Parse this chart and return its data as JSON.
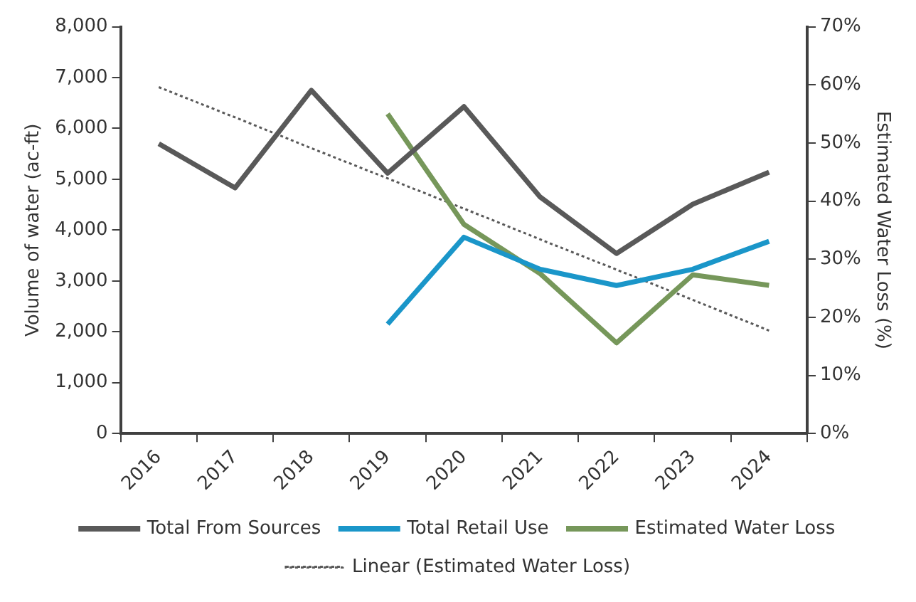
{
  "chart_data": {
    "type": "line",
    "ylabel": "Volume of water (ac-ft)",
    "y2label": "Estimated Water Loss (%)",
    "categories": [
      "2016",
      "2017",
      "2018",
      "2019",
      "2020",
      "2021",
      "2022",
      "2023",
      "2024"
    ],
    "series": [
      {
        "name": "Total From Sources",
        "color": "#595959",
        "values": [
          5700,
          4830,
          6750,
          5120,
          6430,
          4650,
          3540,
          4510,
          5140
        ]
      },
      {
        "name": "Total Retail Use",
        "color": "#1a96c9",
        "values": [
          null,
          null,
          null,
          2150,
          3860,
          3230,
          2910,
          3230,
          3780
        ]
      },
      {
        "name": "Estimated Water Loss",
        "color": "#76975a",
        "axis": "y2",
        "values": [
          null,
          null,
          null,
          55,
          36,
          27.5,
          15.6,
          27.3,
          25.5
        ]
      },
      {
        "name": "Linear (Estimated Water Loss)",
        "color": "#595959",
        "axis": "y2",
        "line_style": "dotted",
        "values": [
          59.6,
          54.4,
          49.1,
          43.9,
          38.7,
          33.4,
          28.2,
          23.0,
          17.7
        ]
      }
    ],
    "ylim": [
      0,
      8000
    ],
    "yticks": [
      0,
      {
        "value": 1000,
        "label": "1,000"
      },
      {
        "value": 2000,
        "label": "2,000"
      },
      {
        "value": 3000,
        "label": "3,000"
      },
      {
        "value": 4000,
        "label": "4,000"
      },
      {
        "value": 5000,
        "label": "5,000"
      },
      {
        "value": 6000,
        "label": "6,000"
      },
      {
        "value": 7000,
        "label": "7,000"
      },
      {
        "value": 8000,
        "label": "8,000"
      }
    ],
    "y2lim": [
      0,
      70
    ],
    "y2ticks": [
      {
        "value": 0,
        "label": "0%"
      },
      {
        "value": 10,
        "label": "10%"
      },
      {
        "value": 20,
        "label": "20%"
      },
      {
        "value": 30,
        "label": "30%"
      },
      {
        "value": 40,
        "label": "40%"
      },
      {
        "value": 50,
        "label": "50%"
      },
      {
        "value": 60,
        "label": "60%"
      },
      {
        "value": 70,
        "label": "70%"
      }
    ],
    "grid": false,
    "legend": "bottom",
    "marker": "none",
    "line_style": "solid"
  }
}
